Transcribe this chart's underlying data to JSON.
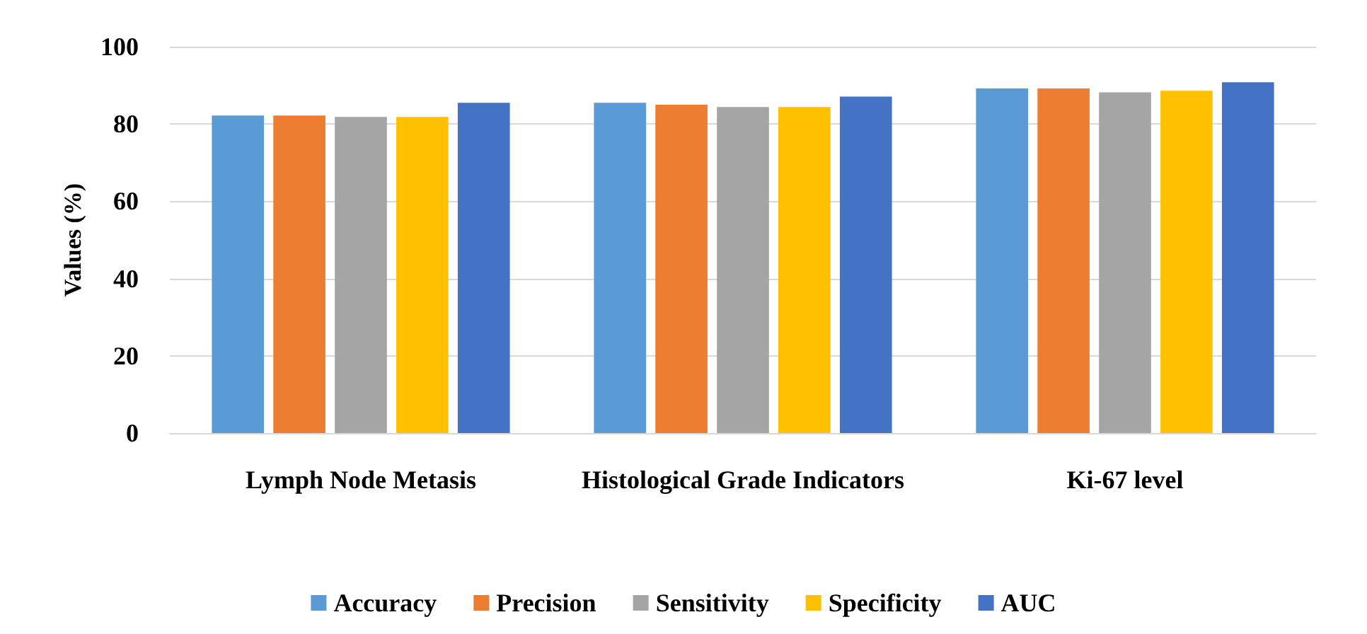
{
  "chart_data": {
    "type": "bar",
    "ylabel": "Values (%)",
    "categories": [
      "Lymph Node Metasis",
      "Histological Grade Indicators",
      "Ki-67 level"
    ],
    "series": [
      {
        "name": "Accuracy",
        "color": "#5b9bd5",
        "values": [
          82.2,
          85.5,
          89.2
        ]
      },
      {
        "name": "Precision",
        "color": "#ed7d31",
        "values": [
          82.2,
          85.0,
          89.2
        ]
      },
      {
        "name": "Sensitivity",
        "color": "#a5a5a5",
        "values": [
          81.8,
          84.4,
          88.2
        ]
      },
      {
        "name": "Specificity",
        "color": "#ffc000",
        "values": [
          81.8,
          84.4,
          88.6
        ]
      },
      {
        "name": "AUC",
        "color": "#4472c4",
        "values": [
          85.5,
          87.1,
          90.8
        ]
      }
    ],
    "ylim": [
      0,
      100
    ],
    "yticks": [
      0,
      20,
      40,
      60,
      80,
      100
    ],
    "grid": "y",
    "legend": "bottom"
  }
}
